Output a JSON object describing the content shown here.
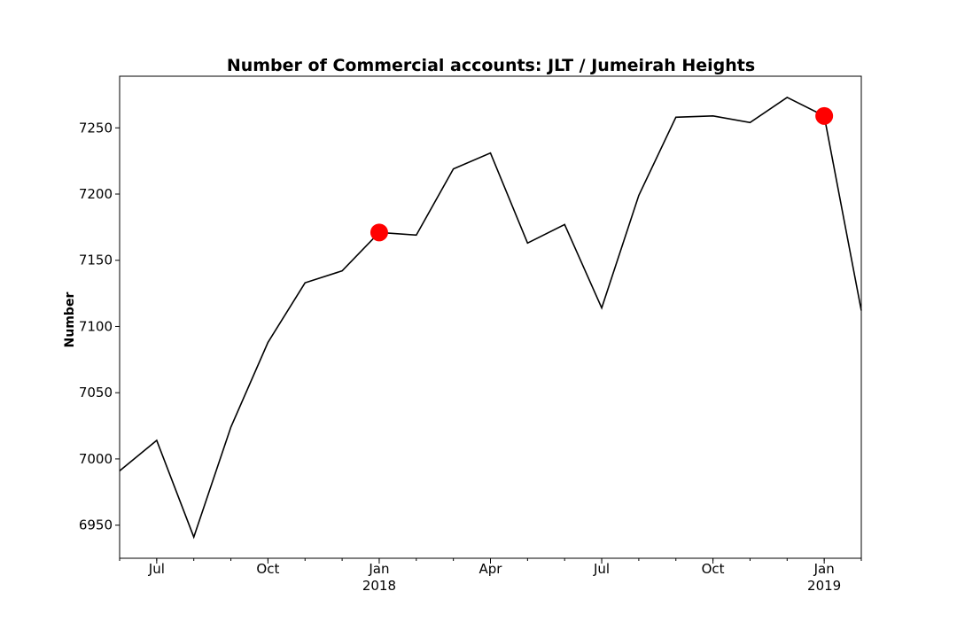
{
  "chart_data": {
    "type": "line",
    "title": "Number of Commercial accounts: JLT / Jumeirah Heights",
    "xlabel": "",
    "ylabel": "Number",
    "x": [
      "2017-06",
      "2017-07",
      "2017-08",
      "2017-09",
      "2017-10",
      "2017-11",
      "2017-12",
      "2018-01",
      "2018-02",
      "2018-03",
      "2018-04",
      "2018-05",
      "2018-06",
      "2018-07",
      "2018-08",
      "2018-09",
      "2018-10",
      "2018-11",
      "2018-12",
      "2019-01",
      "2019-02"
    ],
    "series": [
      {
        "values": [
          6991,
          7014,
          6941,
          7024,
          7088,
          7133,
          7142,
          7171,
          7169,
          7219,
          7231,
          7163,
          7177,
          7114,
          7199,
          7258,
          7259,
          7254,
          7273,
          7259,
          7112
        ],
        "color": "#000000"
      }
    ],
    "highlights": [
      {
        "x": "2018-01",
        "y": 7171,
        "color": "#ff0000"
      },
      {
        "x": "2019-01",
        "y": 7259,
        "color": "#ff0000"
      }
    ],
    "xlim": [
      "2017-06",
      "2019-02"
    ],
    "ylim": [
      6925,
      7289
    ],
    "yticks": [
      6950,
      7000,
      7050,
      7100,
      7150,
      7200,
      7250
    ],
    "xticks_major": [
      {
        "x": "2017-07",
        "label": "Jul",
        "sublabel": ""
      },
      {
        "x": "2017-10",
        "label": "Oct",
        "sublabel": ""
      },
      {
        "x": "2018-01",
        "label": "Jan",
        "sublabel": "2018"
      },
      {
        "x": "2018-04",
        "label": "Apr",
        "sublabel": ""
      },
      {
        "x": "2018-07",
        "label": "Jul",
        "sublabel": ""
      },
      {
        "x": "2018-10",
        "label": "Oct",
        "sublabel": ""
      },
      {
        "x": "2019-01",
        "label": "Jan",
        "sublabel": "2019"
      }
    ],
    "grid": false,
    "legend": "none"
  }
}
